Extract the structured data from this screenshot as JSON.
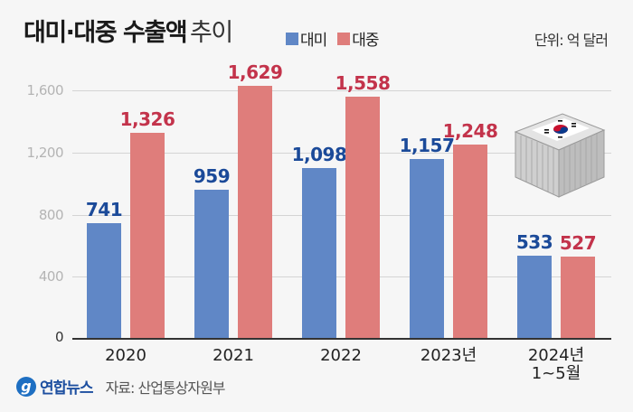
{
  "header": {
    "title_bold": "대미·대중 수출액",
    "title_light": "추이",
    "unit": "단위: 억 달러"
  },
  "legend": [
    {
      "label": "대미",
      "color": "#6087c6"
    },
    {
      "label": "대중",
      "color": "#df7d7b"
    }
  ],
  "colors": {
    "us_bar": "#6087c6",
    "cn_bar": "#df7d7b",
    "us_label": "#1b4a99",
    "cn_label": "#c3334b",
    "background": "#f6f6f6"
  },
  "y_axis": {
    "ticks": [
      "0",
      "400",
      "800",
      "1,200",
      "1,600"
    ]
  },
  "footer": {
    "logo_text": "연합뉴스",
    "source": "자료: 산업통상자원부"
  },
  "icon": {
    "name": "shipping-container-korea-flag-icon"
  },
  "chart_data": {
    "type": "bar",
    "title": "대미·대중 수출액 추이",
    "subtitle": "단위: 억 달러",
    "xlabel": "",
    "ylabel": "억 달러",
    "ylim": [
      0,
      1600
    ],
    "yticks": [
      0,
      400,
      800,
      1200,
      1600
    ],
    "grid": true,
    "legend_position": "top",
    "categories": [
      "2020",
      "2021",
      "2022",
      "2023년",
      "2024년 1~5월"
    ],
    "series": [
      {
        "name": "대미",
        "color": "#6087c6",
        "values": [
          741,
          959,
          1098,
          1157,
          533
        ],
        "labels": [
          "741",
          "959",
          "1,098",
          "1,157",
          "533"
        ]
      },
      {
        "name": "대중",
        "color": "#df7d7b",
        "values": [
          1326,
          1629,
          1558,
          1248,
          527
        ],
        "labels": [
          "1,326",
          "1,629",
          "1,558",
          "1,248",
          "527"
        ]
      }
    ],
    "source": "자료: 산업통상자원부"
  }
}
